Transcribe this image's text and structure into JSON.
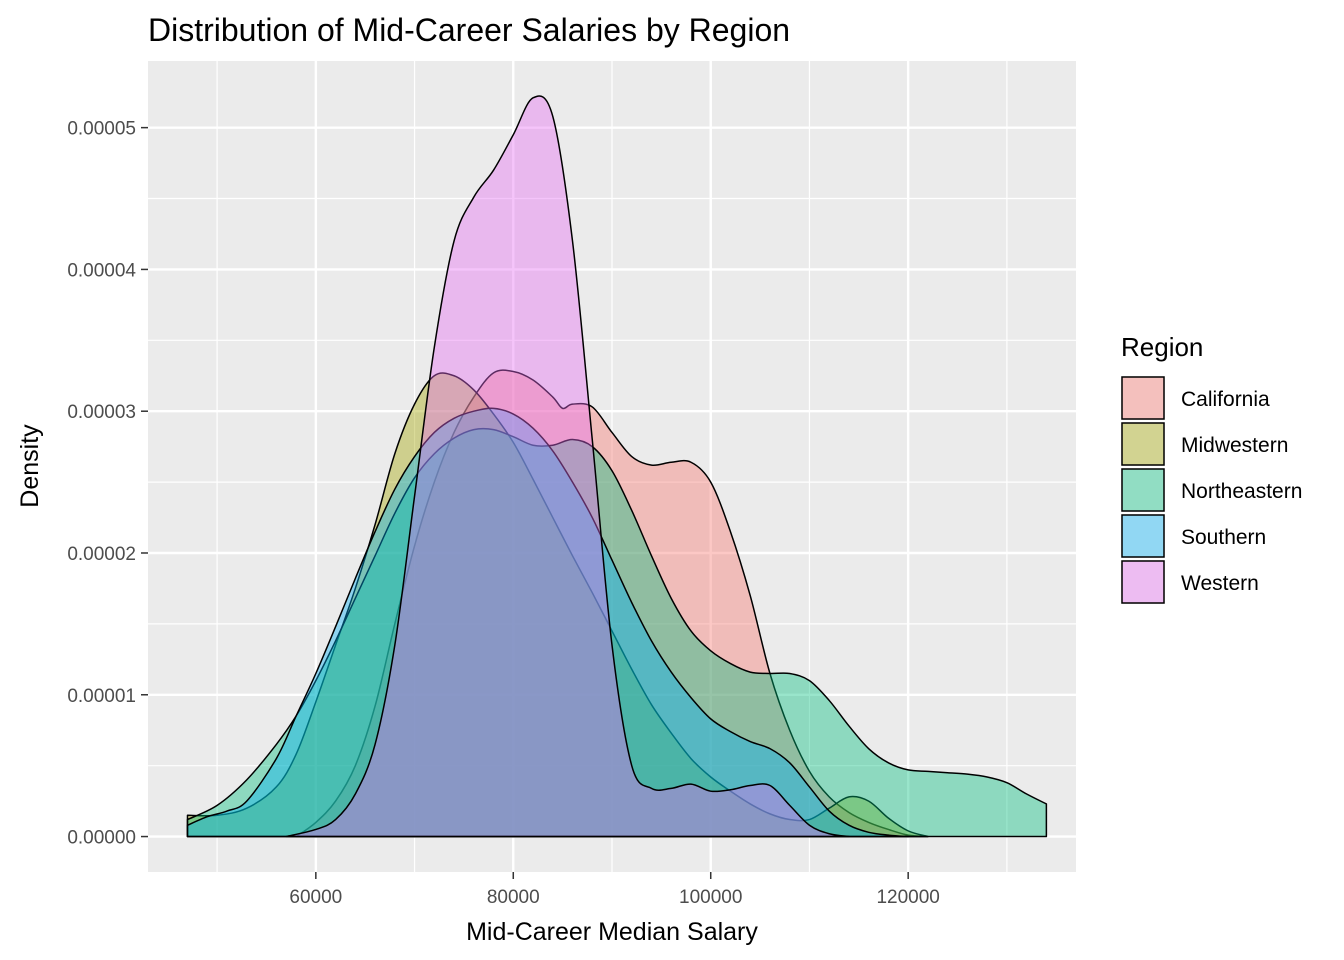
{
  "chart_data": {
    "type": "area",
    "title": "Distribution of Mid-Career Salaries by Region",
    "xlabel": "Mid-Career Median Salary",
    "ylabel": "Density",
    "xlim": [
      43000,
      137000
    ],
    "ylim": [
      -2.5e-06,
      5.47e-05
    ],
    "x_ticks": [
      60000,
      80000,
      100000,
      120000
    ],
    "x_tick_labels": [
      "60000",
      "80000",
      "100000",
      "120000"
    ],
    "y_ticks": [
      0,
      1e-05,
      2e-05,
      3e-05,
      4e-05,
      5e-05
    ],
    "y_tick_labels": [
      "0.00000",
      "0.00001",
      "0.00002",
      "0.00003",
      "0.00004",
      "0.00005"
    ],
    "grid": true,
    "legend": {
      "title": "Region",
      "position": "right"
    },
    "colors": {
      "California": "#F8766D",
      "Midwestern": "#A3A500",
      "Northeastern": "#00BF7D",
      "Southern": "#00B0F6",
      "Western": "#E76BF3"
    },
    "series": [
      {
        "name": "California",
        "points": [
          [
            58000,
            0
          ],
          [
            60000,
            1e-06
          ],
          [
            62000,
            2.5e-06
          ],
          [
            64000,
            5e-06
          ],
          [
            66000,
            9.2e-06
          ],
          [
            68000,
            1.5e-05
          ],
          [
            70000,
            2.05e-05
          ],
          [
            72000,
            2.5e-05
          ],
          [
            74000,
            2.85e-05
          ],
          [
            76000,
            3.1e-05
          ],
          [
            78000,
            3.27e-05
          ],
          [
            80000,
            3.28e-05
          ],
          [
            82000,
            3.22e-05
          ],
          [
            84000,
            3.1e-05
          ],
          [
            85000,
            3.02e-05
          ],
          [
            86000,
            3.05e-05
          ],
          [
            88000,
            3.03e-05
          ],
          [
            90000,
            2.85e-05
          ],
          [
            92000,
            2.68e-05
          ],
          [
            94000,
            2.62e-05
          ],
          [
            96000,
            2.64e-05
          ],
          [
            98000,
            2.64e-05
          ],
          [
            100000,
            2.5e-05
          ],
          [
            102000,
            2.15e-05
          ],
          [
            104000,
            1.7e-05
          ],
          [
            106000,
            1.15e-05
          ],
          [
            108000,
            7.5e-06
          ],
          [
            110000,
            4.6e-06
          ],
          [
            112000,
            2.8e-06
          ],
          [
            114000,
            1.7e-06
          ],
          [
            116000,
            1e-06
          ],
          [
            118000,
            5e-07
          ],
          [
            120000,
            1e-07
          ],
          [
            122000,
            0
          ]
        ]
      },
      {
        "name": "Midwestern",
        "points": [
          [
            47000,
            1.5e-06
          ],
          [
            50000,
            1.5e-06
          ],
          [
            53000,
            2e-06
          ],
          [
            56000,
            3.5e-06
          ],
          [
            58000,
            5.8e-06
          ],
          [
            60000,
            9.5e-06
          ],
          [
            62000,
            1.35e-05
          ],
          [
            64000,
            1.75e-05
          ],
          [
            66000,
            2.2e-05
          ],
          [
            68000,
            2.7e-05
          ],
          [
            70000,
            3.05e-05
          ],
          [
            72000,
            3.25e-05
          ],
          [
            74000,
            3.25e-05
          ],
          [
            76000,
            3.15e-05
          ],
          [
            78000,
            2.98e-05
          ],
          [
            80000,
            2.78e-05
          ],
          [
            82000,
            2.52e-05
          ],
          [
            84000,
            2.25e-05
          ],
          [
            86000,
            1.98e-05
          ],
          [
            88000,
            1.72e-05
          ],
          [
            90000,
            1.45e-05
          ],
          [
            92000,
            1.18e-05
          ],
          [
            94000,
            9.3e-06
          ],
          [
            96000,
            7.3e-06
          ],
          [
            98000,
            5.5e-06
          ],
          [
            100000,
            4.2e-06
          ],
          [
            102000,
            3.2e-06
          ],
          [
            104000,
            2.3e-06
          ],
          [
            106000,
            1.6e-06
          ],
          [
            108000,
            1.2e-06
          ],
          [
            110000,
            1.2e-06
          ],
          [
            112000,
            2e-06
          ],
          [
            114000,
            2.8e-06
          ],
          [
            116000,
            2.5e-06
          ],
          [
            118000,
            1.3e-06
          ],
          [
            120000,
            4e-07
          ],
          [
            122000,
            0
          ]
        ]
      },
      {
        "name": "Northeastern",
        "points": [
          [
            47000,
            1.2e-06
          ],
          [
            50000,
            2.2e-06
          ],
          [
            53000,
            4e-06
          ],
          [
            56000,
            6.5e-06
          ],
          [
            58000,
            8.5e-06
          ],
          [
            60000,
            1.1e-05
          ],
          [
            62000,
            1.38e-05
          ],
          [
            64000,
            1.68e-05
          ],
          [
            66000,
            1.98e-05
          ],
          [
            68000,
            2.28e-05
          ],
          [
            70000,
            2.53e-05
          ],
          [
            72000,
            2.7e-05
          ],
          [
            74000,
            2.81e-05
          ],
          [
            76000,
            2.87e-05
          ],
          [
            78000,
            2.87e-05
          ],
          [
            80000,
            2.82e-05
          ],
          [
            82000,
            2.76e-05
          ],
          [
            84000,
            2.76e-05
          ],
          [
            86000,
            2.8e-05
          ],
          [
            88000,
            2.75e-05
          ],
          [
            90000,
            2.58e-05
          ],
          [
            92000,
            2.3e-05
          ],
          [
            94000,
            1.98e-05
          ],
          [
            96000,
            1.68e-05
          ],
          [
            98000,
            1.45e-05
          ],
          [
            100000,
            1.31e-05
          ],
          [
            102000,
            1.22e-05
          ],
          [
            104000,
            1.16e-05
          ],
          [
            106000,
            1.15e-05
          ],
          [
            108000,
            1.15e-05
          ],
          [
            110000,
            1.1e-05
          ],
          [
            112000,
            9.6e-06
          ],
          [
            114000,
            7.8e-06
          ],
          [
            116000,
            6.2e-06
          ],
          [
            118000,
            5.2e-06
          ],
          [
            120000,
            4.7e-06
          ],
          [
            122000,
            4.6e-06
          ],
          [
            124000,
            4.5e-06
          ],
          [
            126000,
            4.4e-06
          ],
          [
            128000,
            4.2e-06
          ],
          [
            130000,
            3.8e-06
          ],
          [
            132000,
            3e-06
          ],
          [
            134000,
            2.3e-06
          ]
        ]
      },
      {
        "name": "Southern",
        "points": [
          [
            47000,
            8e-07
          ],
          [
            49000,
            1.4e-06
          ],
          [
            51000,
            1.8e-06
          ],
          [
            53000,
            2.5e-06
          ],
          [
            56000,
            5.5e-06
          ],
          [
            58000,
            8.5e-06
          ],
          [
            60000,
            1.15e-05
          ],
          [
            62000,
            1.48e-05
          ],
          [
            64000,
            1.82e-05
          ],
          [
            66000,
            2.15e-05
          ],
          [
            68000,
            2.45e-05
          ],
          [
            70000,
            2.68e-05
          ],
          [
            72000,
            2.85e-05
          ],
          [
            74000,
            2.95e-05
          ],
          [
            76000,
            3e-05
          ],
          [
            78000,
            3.02e-05
          ],
          [
            80000,
            2.98e-05
          ],
          [
            82000,
            2.88e-05
          ],
          [
            84000,
            2.72e-05
          ],
          [
            86000,
            2.5e-05
          ],
          [
            88000,
            2.25e-05
          ],
          [
            90000,
            1.95e-05
          ],
          [
            92000,
            1.65e-05
          ],
          [
            94000,
            1.38e-05
          ],
          [
            96000,
            1.16e-05
          ],
          [
            98000,
            9.8e-06
          ],
          [
            100000,
            8.3e-06
          ],
          [
            102000,
            7.4e-06
          ],
          [
            104000,
            6.7e-06
          ],
          [
            106000,
            6.2e-06
          ],
          [
            108000,
            5.2e-06
          ],
          [
            110000,
            3.5e-06
          ],
          [
            112000,
            1.8e-06
          ],
          [
            114000,
            8e-07
          ],
          [
            116000,
            3e-07
          ],
          [
            118000,
            1e-07
          ],
          [
            120000,
            0
          ]
        ]
      },
      {
        "name": "Western",
        "points": [
          [
            57000,
            0
          ],
          [
            60000,
            5e-07
          ],
          [
            62000,
            1.2e-06
          ],
          [
            64000,
            3e-06
          ],
          [
            66000,
            6.5e-06
          ],
          [
            68000,
            1.35e-05
          ],
          [
            70000,
            2.4e-05
          ],
          [
            72000,
            3.45e-05
          ],
          [
            74000,
            4.2e-05
          ],
          [
            76000,
            4.51e-05
          ],
          [
            78000,
            4.7e-05
          ],
          [
            80000,
            4.95e-05
          ],
          [
            82000,
            5.21e-05
          ],
          [
            84000,
            5.08e-05
          ],
          [
            86000,
            4.2e-05
          ],
          [
            88000,
            2.8e-05
          ],
          [
            90000,
            1.35e-05
          ],
          [
            92000,
            5e-06
          ],
          [
            94000,
            3.4e-06
          ],
          [
            96000,
            3.4e-06
          ],
          [
            98000,
            3.7e-06
          ],
          [
            100000,
            3.2e-06
          ],
          [
            102000,
            3.3e-06
          ],
          [
            104000,
            3.6e-06
          ],
          [
            106000,
            3.6e-06
          ],
          [
            108000,
            2.2e-06
          ],
          [
            110000,
            8e-07
          ],
          [
            112000,
            2e-07
          ],
          [
            114000,
            0
          ]
        ]
      }
    ]
  }
}
